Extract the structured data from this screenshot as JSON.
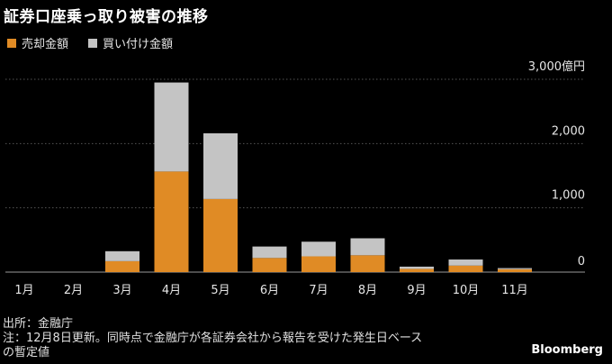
{
  "title": "証券口座乗っ取り被害の推移",
  "legend": {
    "sell": "売却金額",
    "buy": "買い付け金額"
  },
  "colors": {
    "sell": "#E08B25",
    "buy": "#C4C4C4",
    "gridline": "#555555",
    "text": "#E6E6E6"
  },
  "chart_data": {
    "type": "bar",
    "stacked": true,
    "title": "証券口座乗っ取り被害の推移",
    "categories": [
      "1月",
      "2月",
      "3月",
      "4月",
      "5月",
      "6月",
      "7月",
      "8月",
      "9月",
      "10月",
      "11月"
    ],
    "series": [
      {
        "name": "売却金額",
        "values": [
          0,
          0,
          170,
          1565,
          1137,
          220,
          245,
          262,
          50,
          101,
          45
        ]
      },
      {
        "name": "買い付け金額",
        "values": [
          0,
          0,
          155,
          1385,
          1023,
          178,
          228,
          264,
          35,
          95,
          17
        ]
      }
    ],
    "ylim": [
      0,
      3000
    ],
    "yticks": [
      0,
      1000,
      2000,
      3000
    ],
    "ytick_labels": [
      "0",
      "1,000",
      "2,000",
      "3,000億円"
    ],
    "ylabel": "",
    "xlabel": "",
    "grid": true
  },
  "footer": {
    "source": "出所：金融庁",
    "note_line1": "注：12月8日更新。同時点で金融庁が各証券会社から報告を受けた発生日ベース",
    "note_line2": "の暫定値"
  },
  "brand": "Bloomberg"
}
